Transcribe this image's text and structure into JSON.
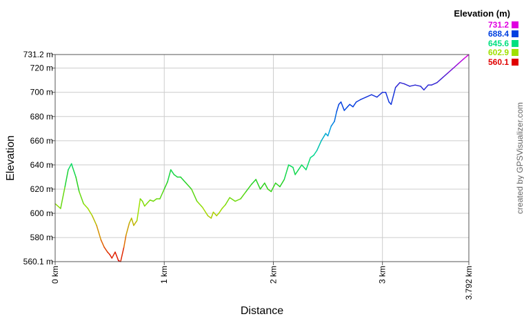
{
  "chart_data": {
    "type": "line",
    "title": "",
    "xlabel": "Distance",
    "ylabel": "Elevation",
    "xlim": [
      0,
      3.792
    ],
    "ylim": [
      560.1,
      731.2
    ],
    "x_ticks": [
      {
        "value": 0,
        "label": "0 km"
      },
      {
        "value": 1,
        "label": "1 km"
      },
      {
        "value": 2,
        "label": "2 km"
      },
      {
        "value": 3,
        "label": "3 km"
      },
      {
        "value": 3.792,
        "label": "3.792 km"
      }
    ],
    "y_ticks": [
      {
        "value": 560.1,
        "label": "560.1 m"
      },
      {
        "value": 580,
        "label": "580 m"
      },
      {
        "value": 600,
        "label": "600 m"
      },
      {
        "value": 620,
        "label": "620 m"
      },
      {
        "value": 640,
        "label": "640 m"
      },
      {
        "value": 660,
        "label": "660 m"
      },
      {
        "value": 680,
        "label": "680 m"
      },
      {
        "value": 700,
        "label": "700 m"
      },
      {
        "value": 720,
        "label": "720 m"
      },
      {
        "value": 731.2,
        "label": "731.2 m"
      }
    ],
    "grid": true,
    "series": [
      {
        "x": [
          0,
          0.05,
          0.09,
          0.12,
          0.15,
          0.16,
          0.19,
          0.22,
          0.26,
          0.3,
          0.34,
          0.38,
          0.42,
          0.45,
          0.48,
          0.5,
          0.52,
          0.55,
          0.58,
          0.6,
          0.63,
          0.65,
          0.68,
          0.7,
          0.72,
          0.75,
          0.78,
          0.8,
          0.82,
          0.84,
          0.87,
          0.9,
          0.93,
          0.96,
          1.0,
          1.03,
          1.06,
          1.09,
          1.12,
          1.15,
          1.2,
          1.25,
          1.3,
          1.35,
          1.4,
          1.43,
          1.45,
          1.48,
          1.5,
          1.53,
          1.56,
          1.6,
          1.65,
          1.7,
          1.75,
          1.8,
          1.84,
          1.88,
          1.92,
          1.95,
          1.98,
          2.02,
          2.06,
          2.1,
          2.14,
          2.18,
          2.2,
          2.23,
          2.26,
          2.3,
          2.34,
          2.37,
          2.4,
          2.44,
          2.48,
          2.5,
          2.53,
          2.56,
          2.58,
          2.6,
          2.62,
          2.65,
          2.68,
          2.7,
          2.73,
          2.76,
          2.8,
          2.85,
          2.9,
          2.95,
          3.0,
          3.03,
          3.06,
          3.08,
          3.12,
          3.16,
          3.2,
          3.25,
          3.3,
          3.35,
          3.38,
          3.42,
          3.45,
          3.5,
          3.55,
          3.6,
          3.65,
          3.7,
          3.75,
          3.792
        ],
        "y": [
          608,
          604,
          622,
          636,
          641,
          638,
          630,
          618,
          608,
          604,
          598,
          590,
          578,
          572,
          568,
          566,
          563,
          568,
          561,
          560.1,
          572,
          582,
          592,
          596,
          590,
          594,
          612,
          610,
          606,
          608,
          611,
          610,
          612,
          612,
          620,
          626,
          636,
          632,
          630,
          630,
          625,
          620,
          610,
          605,
          598,
          596,
          601,
          598,
          600,
          604,
          607,
          613,
          610,
          612,
          618,
          624,
          628,
          620,
          625,
          620,
          618,
          625,
          622,
          628,
          640,
          638,
          632,
          636,
          640,
          636,
          646,
          648,
          652,
          660,
          666,
          664,
          672,
          676,
          684,
          690,
          692,
          685,
          688,
          690,
          688,
          692,
          694,
          696,
          698,
          696,
          700,
          700,
          692,
          690,
          704,
          708,
          707,
          705,
          706,
          705,
          702,
          706,
          706,
          708,
          712,
          716,
          720,
          724,
          728,
          731.2
        ]
      }
    ],
    "legend": {
      "title": "Elevation (m)",
      "position": "top-right",
      "entries": [
        {
          "label": "731.2",
          "color": "#e000e0"
        },
        {
          "label": "688.4",
          "color": "#0040e0"
        },
        {
          "label": "645.6",
          "color": "#00e080"
        },
        {
          "label": "602.9",
          "color": "#a0e000"
        },
        {
          "label": "560.1",
          "color": "#e00000"
        }
      ]
    },
    "gradient_stops": [
      {
        "value": 560.1,
        "color": "#e00000"
      },
      {
        "value": 580.0,
        "color": "#e08000"
      },
      {
        "value": 602.9,
        "color": "#a0e000"
      },
      {
        "value": 625.0,
        "color": "#20d020"
      },
      {
        "value": 645.6,
        "color": "#00e080"
      },
      {
        "value": 668.0,
        "color": "#00a0e0"
      },
      {
        "value": 688.4,
        "color": "#0040e0"
      },
      {
        "value": 712.0,
        "color": "#4020d0"
      },
      {
        "value": 731.2,
        "color": "#e000e0"
      }
    ]
  },
  "credit": "created by GPSVisualizer.com"
}
